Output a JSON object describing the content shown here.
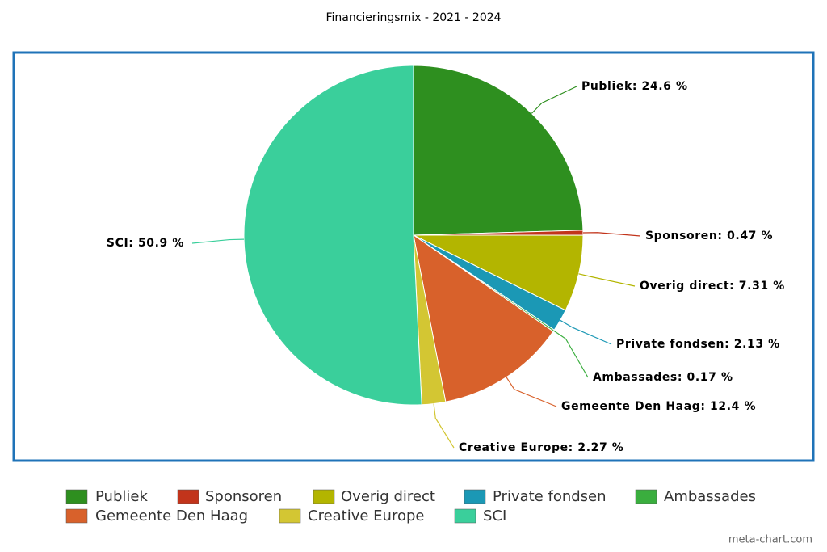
{
  "chart_data": {
    "type": "pie",
    "title": "Financieringsmix - 2021 - 2024",
    "categories": [
      "Publiek",
      "Sponsoren",
      "Overig direct",
      "Private fondsen",
      "Ambassades",
      "Gemeente Den Haag",
      "Creative Europe",
      "SCI"
    ],
    "values": [
      24.6,
      0.47,
      7.31,
      2.13,
      0.17,
      12.4,
      2.27,
      50.9
    ],
    "value_labels": [
      "Publiek: 24.6 %",
      "Sponsoren: 0.47 %",
      "Overig direct: 7.31 %",
      "Private fondsen: 2.13 %",
      "Ambassades: 0.17 %",
      "Gemeente Den Haag: 12.4 %",
      "Creative Europe: 2.27 %",
      "SCI: 50.9 %"
    ],
    "colors": [
      "#2e8f1f",
      "#c2341b",
      "#b3b500",
      "#1b98b5",
      "#3aae3e",
      "#d8612b",
      "#d3c633",
      "#3acf9b"
    ],
    "credit": "meta-chart.com"
  }
}
